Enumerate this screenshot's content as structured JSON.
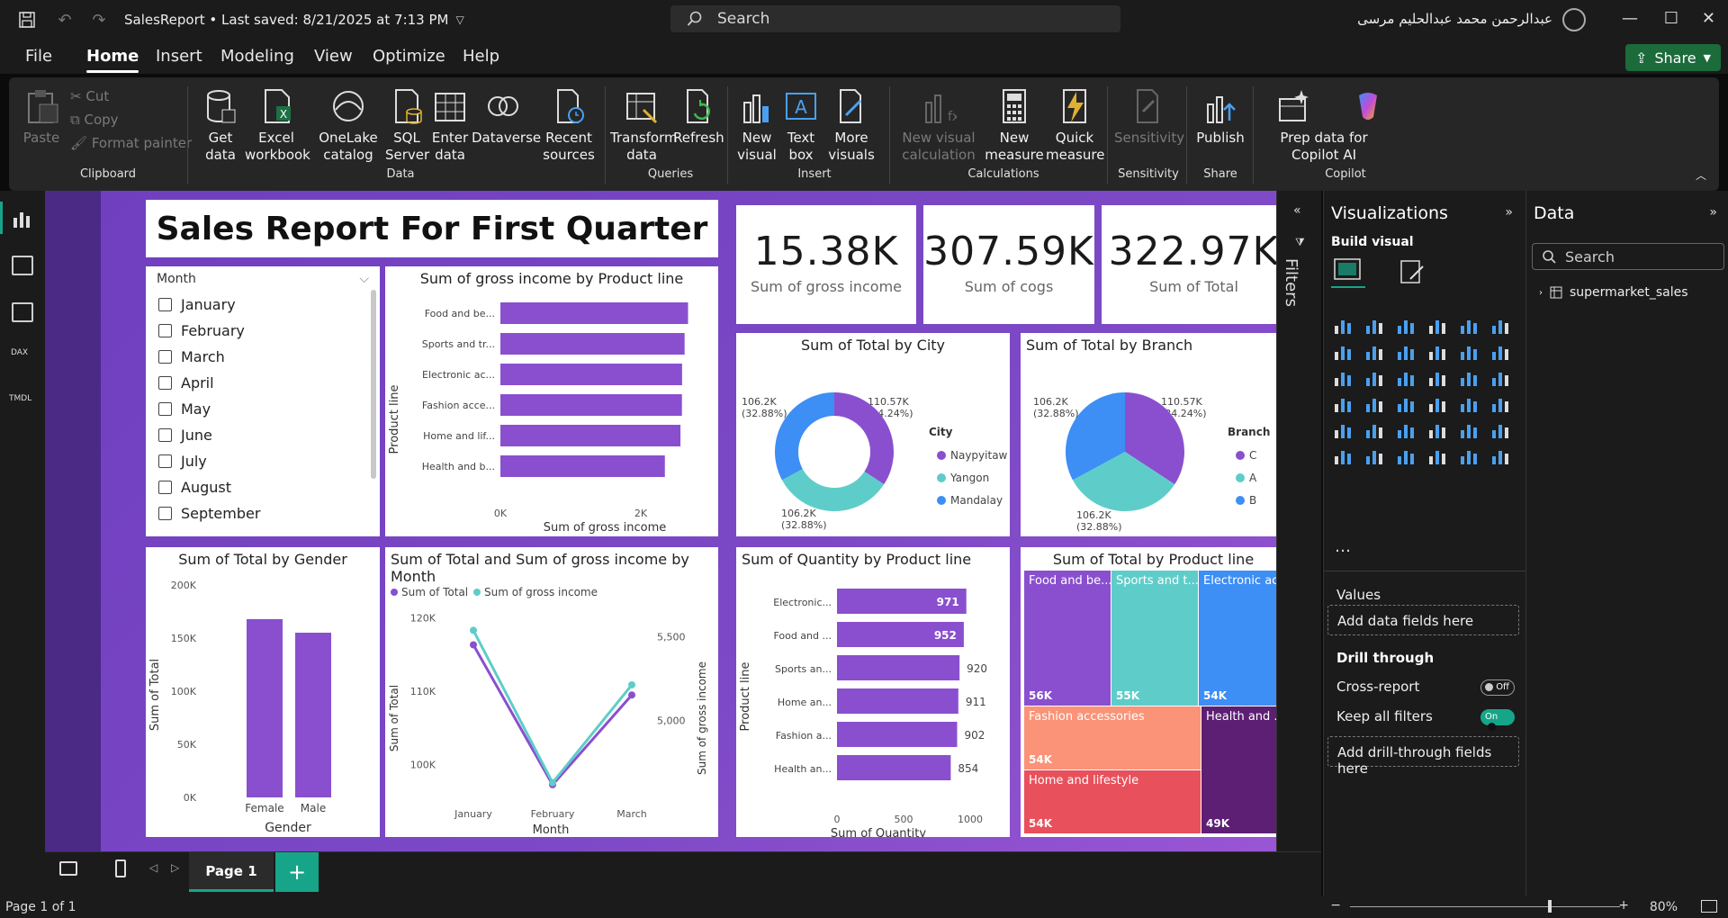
{
  "titlebar": {
    "doc_title": "SalesReport • Last saved: 8/21/2025 at 7:13 PM",
    "search": "Search",
    "user": "عبدالرحمن محمد عبدالحليم مرسى"
  },
  "menu": {
    "items": [
      "File",
      "Home",
      "Insert",
      "Modeling",
      "View",
      "Optimize",
      "Help"
    ],
    "share": "Share"
  },
  "ribbon": {
    "clipboard": {
      "paste": "Paste",
      "cut": "Cut",
      "copy": "Copy",
      "format_painter": "Format painter",
      "label": "Clipboard"
    },
    "data": {
      "get_data": "Get data",
      "excel": "Excel workbook",
      "onelake": "OneLake catalog",
      "sql": "SQL Server",
      "enter": "Enter data",
      "dataverse": "Dataverse",
      "recent": "Recent sources",
      "label": "Data"
    },
    "queries": {
      "transform": "Transform data",
      "refresh": "Refresh",
      "label": "Queries"
    },
    "insert": {
      "new_visual": "New visual",
      "text_box": "Text box",
      "more_visuals": "More visuals",
      "label": "Insert"
    },
    "calculations": {
      "new_visual_calc": "New visual calculation",
      "new_measure": "New measure",
      "quick_measure": "Quick measure",
      "label": "Calculations"
    },
    "sensitivity": {
      "btn": "Sensitivity",
      "label": "Sensitivity"
    },
    "share": {
      "publish": "Publish",
      "label": "Share"
    },
    "copilot": {
      "prep": "Prep data for Copilot AI",
      "label": "Copilot"
    }
  },
  "report": {
    "title": "Sales Report For First Quarter",
    "kpis": [
      {
        "value": "15.38K",
        "label": "Sum of gross income"
      },
      {
        "value": "307.59K",
        "label": "Sum of cogs"
      },
      {
        "value": "322.97K",
        "label": "Sum of Total"
      }
    ],
    "slicer": {
      "header": "Month",
      "items": [
        "January",
        "February",
        "March",
        "April",
        "May",
        "June",
        "July",
        "August",
        "September"
      ]
    },
    "gross_by_product": {
      "title": "Sum of gross income by Product line",
      "ylabel": "Product line",
      "xlabel": "Sum of gross income",
      "ticks": [
        "0K",
        "2K"
      ]
    },
    "city": {
      "title": "Sum of Total by City",
      "legend_title": "City",
      "labels": [
        "110.57K",
        "(34.24%)",
        "106.2K",
        "(32.88%)",
        "106.2K",
        "(32.88%)"
      ]
    },
    "branch": {
      "title": "Sum of Total by Branch",
      "legend_title": "Branch",
      "labels": [
        "110.57K",
        "(34.24%)",
        "106.2K",
        "(32.88%)",
        "106.2K",
        "(32.88%)"
      ]
    },
    "gender": {
      "title": "Sum of Total by Gender",
      "ylabel": "Sum of Total",
      "xlabel": "Gender",
      "ticks": [
        "200K",
        "150K",
        "100K",
        "50K",
        "0K"
      ]
    },
    "month_line": {
      "title": "Sum of Total and Sum of gross income by Month",
      "legend": [
        "Sum of Total",
        "Sum of gross income"
      ],
      "ylabel": "Sum of Total",
      "y2label": "Sum of gross income",
      "xlabel": "Month",
      "ticks": [
        "120K",
        "110K",
        "100K"
      ],
      "ticks2": [
        "5,500",
        "5,000"
      ]
    },
    "quantity": {
      "title": "Sum of Quantity by Product line",
      "ylabel": "Product line",
      "xlabel": "Sum of Quantity",
      "ticks": [
        "0",
        "500",
        "1000"
      ]
    },
    "treemap": {
      "title": "Sum of Total by Product line",
      "cells": [
        {
          "label": "Food and be...",
          "value": "56K",
          "color": "#8a4fcf"
        },
        {
          "label": "Sports and t...",
          "value": "55K",
          "color": "#5ecdc9"
        },
        {
          "label": "Electronic ac...",
          "value": "54K",
          "color": "#3d8ef5"
        },
        {
          "label": "Fashion accessories",
          "value": "54K",
          "color": "#fa9378"
        },
        {
          "label": "Health and ...",
          "value": "49K",
          "color": "#5c1f73"
        },
        {
          "label": "Home and lifestyle",
          "value": "54K",
          "color": "#e8505b"
        }
      ]
    }
  },
  "chart_data": [
    {
      "type": "bar",
      "title": "Sum of gross income by Product line",
      "categories": [
        "Food and be...",
        "Sports and tr...",
        "Electronic ac...",
        "Fashion acce...",
        "Home and lif...",
        "Health and b..."
      ],
      "values": [
        2673,
        2624,
        2588,
        2586,
        2565,
        2343
      ],
      "xlabel": "Sum of gross income",
      "ylabel": "Product line",
      "xlim": [
        0,
        2800
      ]
    },
    {
      "type": "pie",
      "title": "Sum of Total by City",
      "categories": [
        "Naypyitaw",
        "Yangon",
        "Mandalay"
      ],
      "values": [
        110.57,
        106.2,
        106.2
      ],
      "colors": [
        "#8a4fcf",
        "#5ecdc9",
        "#3d8ef5"
      ],
      "donut": true
    },
    {
      "type": "pie",
      "title": "Sum of Total by Branch",
      "categories": [
        "C",
        "A",
        "B"
      ],
      "values": [
        110.57,
        106.2,
        106.2
      ],
      "colors": [
        "#8a4fcf",
        "#5ecdc9",
        "#3d8ef5"
      ],
      "donut": false
    },
    {
      "type": "bar",
      "title": "Sum of Total by Gender",
      "categories": [
        "Female",
        "Male"
      ],
      "values": [
        167882,
        155084
      ],
      "xlabel": "Gender",
      "ylabel": "Sum of Total",
      "ylim": [
        0,
        200000
      ]
    },
    {
      "type": "line",
      "title": "Sum of Total and Sum of gross income by Month",
      "categories": [
        "January",
        "February",
        "March"
      ],
      "series": [
        {
          "name": "Sum of Total",
          "values": [
            116292,
            97219,
            109456
          ],
          "color": "#8a4fcf"
        },
        {
          "name": "Sum of gross income",
          "values": [
            5537,
            4629,
            5212
          ],
          "color": "#5ecdc9"
        }
      ],
      "ylim": [
        95000,
        122000
      ],
      "y2lim": [
        4520,
        5700
      ]
    },
    {
      "type": "bar",
      "title": "Sum of Quantity by Product line",
      "categories": [
        "Electronic...",
        "Food and ...",
        "Sports an...",
        "Home an...",
        "Fashion a...",
        "Health an..."
      ],
      "values": [
        971,
        952,
        920,
        911,
        902,
        854
      ],
      "xlabel": "Sum of Quantity",
      "ylabel": "Product line",
      "xlim": [
        0,
        1000
      ]
    }
  ],
  "viz_pane": {
    "title": "Visualizations",
    "build": "Build visual",
    "values": "Values",
    "add_data": "Add data fields here",
    "drill": "Drill through",
    "cross": "Cross-report",
    "cross_state": "Off",
    "keep": "Keep all filters",
    "keep_state": "On",
    "add_drill": "Add drill-through fields here"
  },
  "data_pane": {
    "title": "Data",
    "search": "Search",
    "table": "supermarket_sales"
  },
  "filters": "Filters",
  "pages": {
    "tab": "Page 1"
  },
  "status": {
    "page": "Page 1 of 1",
    "zoom": "80%"
  }
}
